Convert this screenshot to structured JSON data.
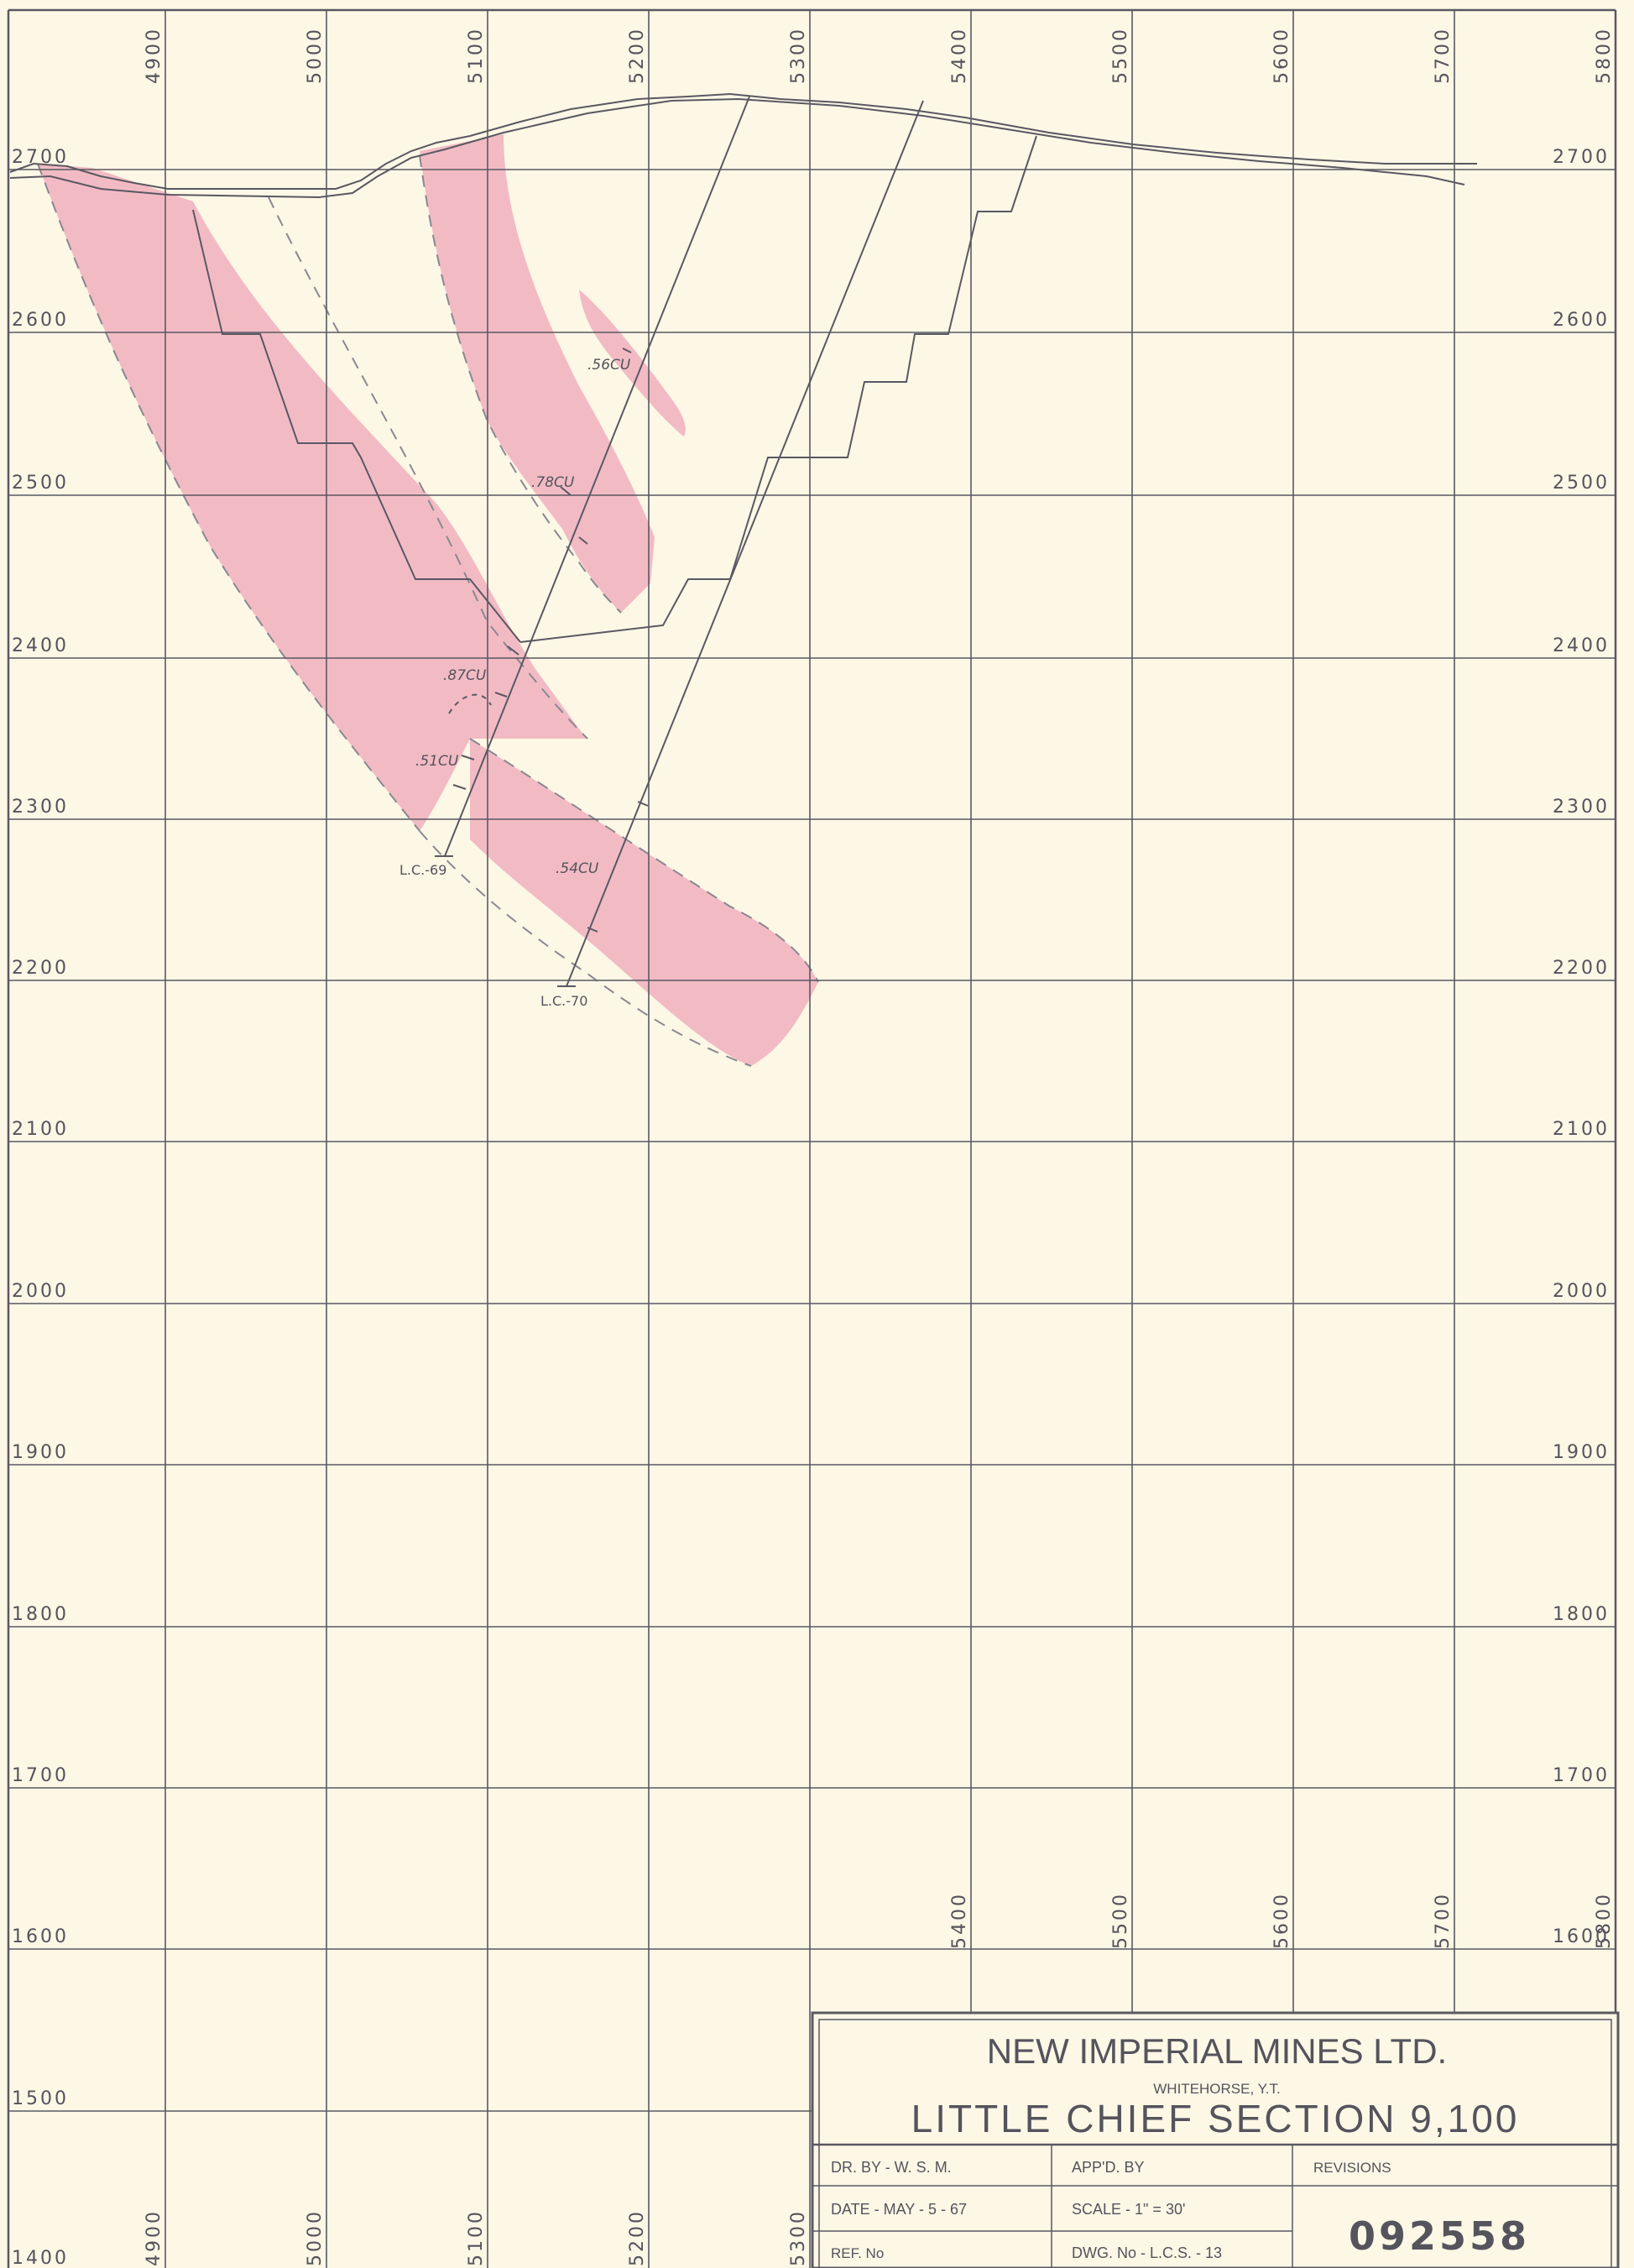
{
  "elevation_labels": {
    "left": [
      "2700",
      "2600",
      "2500",
      "2400",
      "2300",
      "2200",
      "2100",
      "2000",
      "1900",
      "1800",
      "1700",
      "1600",
      "1500",
      "1400"
    ],
    "right": [
      "2700",
      "2600",
      "2500",
      "2400",
      "2300",
      "2200",
      "2100",
      "2000",
      "1900",
      "1800",
      "1700",
      "1600"
    ]
  },
  "easting_labels": {
    "top": [
      "4900",
      "5000",
      "5100",
      "5200",
      "5300",
      "5400",
      "5500",
      "5600",
      "5700",
      "5800"
    ],
    "mid": [
      "5400",
      "5500",
      "5600",
      "5700",
      "5800"
    ],
    "bottom": [
      "4900",
      "5000",
      "5100",
      "5200",
      "5300"
    ]
  },
  "assays": [
    ".56CU",
    ".78CU",
    ".87CU",
    ".51CU",
    ".54CU"
  ],
  "drill_holes": [
    "L.C.-69",
    "L.C.-70"
  ],
  "ore_color": "#e98aa8",
  "title_block": {
    "company": "NEW IMPERIAL MINES LTD.",
    "location": "WHITEHORSE, Y.T.",
    "title": "LITTLE CHIEF SECTION 9,100",
    "drawn_by": "DR. BY - W. S. M.",
    "approved_by": "APP'D. BY",
    "revisions": "REVISIONS",
    "date": "DATE - MAY - 5 - 67",
    "scale": "SCALE - 1\" = 30'",
    "ref_no": "REF. No",
    "dwg_no": "DWG. No - L.C.S. - 13",
    "stamp_no": "092558"
  }
}
